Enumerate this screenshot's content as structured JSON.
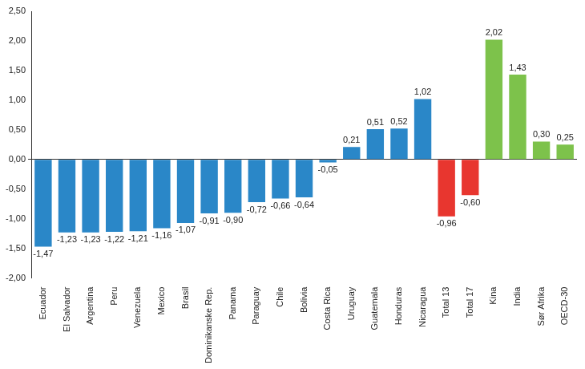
{
  "chart_data": {
    "type": "bar",
    "categories": [
      "Ecuador",
      "El Salvador",
      "Argentina",
      "Peru",
      "Venezuela",
      "Mexico",
      "Brasil",
      "Dominikanske Rep.",
      "Panama",
      "Paraguay",
      "Chile",
      "Bolivia",
      "Costa Rica",
      "Uruguay",
      "Guatemala",
      "Honduras",
      "Nicaragua",
      "Total 13",
      "Total 17",
      "Kina",
      "India",
      "Sør Afrika",
      "OECD-30"
    ],
    "values": [
      -1.47,
      -1.23,
      -1.23,
      -1.22,
      -1.21,
      -1.16,
      -1.07,
      -0.91,
      -0.9,
      -0.72,
      -0.66,
      -0.64,
      -0.05,
      0.21,
      0.51,
      0.52,
      1.02,
      -0.96,
      -0.6,
      2.02,
      1.43,
      0.3,
      0.25
    ],
    "value_labels": [
      "-1,47",
      "-1,23",
      "-1,23",
      "-1,22",
      "-1,21",
      "-1,16",
      "-1,07",
      "-0,91",
      "-0,90",
      "-0,72",
      "-0,66",
      "-0,64",
      "-0,05",
      "0,21",
      "0,51",
      "0,52",
      "1,02",
      "-0,96",
      "-0,60",
      "2,02",
      "1,43",
      "0,30",
      "0,25"
    ],
    "colors": [
      "#2a87c8",
      "#2a87c8",
      "#2a87c8",
      "#2a87c8",
      "#2a87c8",
      "#2a87c8",
      "#2a87c8",
      "#2a87c8",
      "#2a87c8",
      "#2a87c8",
      "#2a87c8",
      "#2a87c8",
      "#2a87c8",
      "#2a87c8",
      "#2a87c8",
      "#2a87c8",
      "#2a87c8",
      "#e8362f",
      "#e8362f",
      "#7dc24b",
      "#7dc24b",
      "#7dc24b",
      "#7dc24b"
    ],
    "ylim": [
      -2,
      2.5
    ],
    "yticks": [
      {
        "value": -2,
        "label": "-2,00"
      },
      {
        "value": -1.5,
        "label": "-1,50"
      },
      {
        "value": -1,
        "label": "-1,00"
      },
      {
        "value": -0.5,
        "label": "-0,50"
      },
      {
        "value": 0,
        "label": "0,00"
      },
      {
        "value": 0.5,
        "label": "0,50"
      },
      {
        "value": 1,
        "label": "1,00"
      },
      {
        "value": 1.5,
        "label": "1,50"
      },
      {
        "value": 2,
        "label": "2,00"
      },
      {
        "value": 2.5,
        "label": "2,50"
      }
    ],
    "grid": false,
    "data_labels": true
  }
}
